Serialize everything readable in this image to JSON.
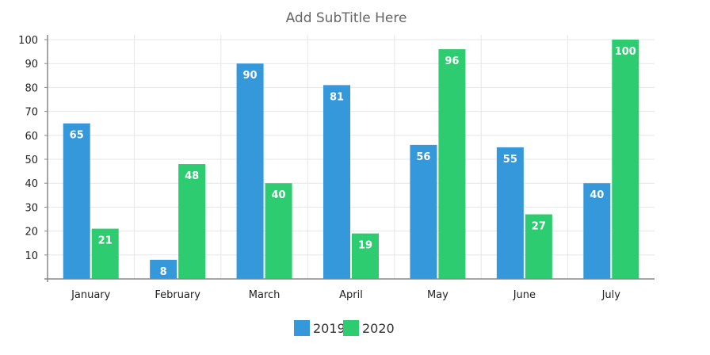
{
  "chart_data": {
    "type": "bar",
    "title": "",
    "subtitle": "Add SubTitle Here",
    "categories": [
      "January",
      "February",
      "March",
      "April",
      "May",
      "June",
      "July"
    ],
    "series": [
      {
        "name": "2019",
        "color": "#3498db",
        "values": [
          65,
          8,
          90,
          81,
          56,
          55,
          40
        ]
      },
      {
        "name": "2020",
        "color": "#2ecc71",
        "values": [
          21,
          48,
          40,
          19,
          96,
          27,
          100
        ]
      }
    ],
    "yticks": [
      10,
      20,
      30,
      40,
      50,
      60,
      70,
      80,
      90,
      100
    ],
    "ylim": [
      0,
      100
    ],
    "grid": true,
    "legend": "bottom-center",
    "data_labels": true,
    "xlabel": "",
    "ylabel": ""
  }
}
